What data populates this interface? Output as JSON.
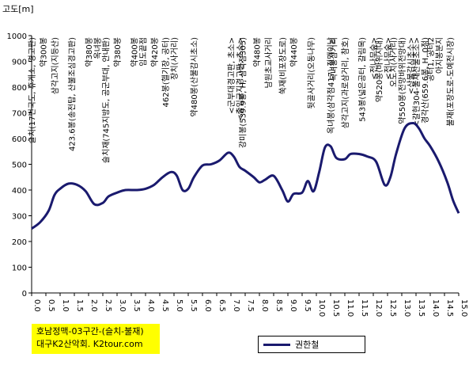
{
  "chart_data": {
    "type": "line",
    "ylabel": "고도[m]",
    "xlim": [
      0.0,
      15.0
    ],
    "ylim": [
      0,
      1000
    ],
    "grid": false,
    "legend_position": "bottom-right",
    "x_ticks": [
      "0.0",
      "0.5",
      "1.0",
      "1.5",
      "2.0",
      "2.5",
      "3.0",
      "3.5",
      "4.0",
      "4.5",
      "5.0",
      "5.5",
      "6.0",
      "6.5",
      "7.0",
      "7.5",
      "8.0",
      "8.5",
      "9.0",
      "9.5",
      "10.0",
      "10.5",
      "11.0",
      "11.5",
      "12.0",
      "12.5",
      "13.0",
      "13.5",
      "14.0",
      "14.5",
      "15.0"
    ],
    "y_ticks": [
      "0",
      "100",
      "200",
      "300",
      "400",
      "500",
      "600",
      "700",
      "800",
      "900",
      "1000"
    ],
    "series": [
      {
        "name": "권한철",
        "color": "#1a1a6e",
        "x": [
          0.0,
          0.3,
          0.6,
          0.8,
          1.0,
          1.3,
          1.6,
          1.9,
          2.2,
          2.5,
          2.7,
          3.0,
          3.3,
          3.7,
          4.0,
          4.3,
          4.6,
          4.9,
          5.1,
          5.3,
          5.5,
          5.7,
          6.0,
          6.3,
          6.6,
          6.9,
          7.1,
          7.3,
          7.5,
          7.8,
          8.0,
          8.2,
          8.5,
          8.8,
          9.0,
          9.2,
          9.5,
          9.7,
          9.9,
          10.1,
          10.3,
          10.5,
          10.7,
          11.0,
          11.2,
          11.5,
          11.8,
          12.1,
          12.4,
          12.6,
          12.8,
          13.1,
          13.4,
          13.6,
          13.8,
          14.0,
          14.3,
          14.6,
          14.8,
          15.0
        ],
        "y": [
          250,
          275,
          320,
          380,
          405,
          425,
          420,
          395,
          345,
          350,
          375,
          390,
          400,
          400,
          405,
          420,
          450,
          470,
          455,
          400,
          405,
          450,
          495,
          500,
          515,
          545,
          530,
          490,
          475,
          450,
          430,
          440,
          455,
          400,
          355,
          385,
          390,
          435,
          395,
          470,
          565,
          570,
          525,
          520,
          540,
          540,
          530,
          510,
          420,
          450,
          540,
          640,
          660,
          640,
          600,
          570,
          510,
          430,
          360,
          310
        ]
      }
    ],
    "annotations": [
      {
        "x": 0.0,
        "text": "슬치(17번국도, 휴게소, 경고판)"
      },
      {
        "x": 0.4,
        "text": "약300봉"
      },
      {
        "x": 0.8,
        "text": "삼각고지(지등산)"
      },
      {
        "x": 1.4,
        "text": "423.6봉(송전탑, 산불조심경고판)"
      },
      {
        "x": 2.0,
        "text": "약380봉"
      },
      {
        "x": 2.3,
        "text": "옥녀봉"
      },
      {
        "x": 2.6,
        "text": "슬치재(745지방도, 공군부대, 안내판)"
      },
      {
        "x": 3.0,
        "text": "약380봉"
      },
      {
        "x": 3.6,
        "text": "약400봉"
      },
      {
        "x": 3.9,
        "text": "임도끝점"
      },
      {
        "x": 4.3,
        "text": "약420봉"
      },
      {
        "x": 4.7,
        "text": "462봉(헬기장, 공터)"
      },
      {
        "x": 5.0,
        "text": "장치(사거리)"
      },
      {
        "x": 5.7,
        "text": "약480봉(산불감시초소)"
      },
      {
        "x": 7.0,
        "text": "<군부대경고판, 초소>"
      },
      {
        "x": 7.3,
        "text": "<출입금지경고판, 초소>"
      },
      {
        "x": 7.4,
        "text": "강미봉(539.9봉, H, 삼각점305)"
      },
      {
        "x": 7.9,
        "text": "약480봉"
      },
      {
        "x": 8.3,
        "text": "남원초교사거리"
      },
      {
        "x": 8.8,
        "text": "쑥재(비포장도로)"
      },
      {
        "x": 9.2,
        "text": "약440봉"
      },
      {
        "x": 9.8,
        "text": "뒷골사거리(오동나무)"
      },
      {
        "x": 10.5,
        "text": "옥녀봉(삼각점417) 정맥이남"
      },
      {
        "x": 10.6,
        "text": "옥녀봉삼거리"
      },
      {
        "x": 11.0,
        "text": "삼각고지(과로삼거리, 참호)"
      },
      {
        "x": 11.6,
        "text": "543봉(넓은공터, 갈림목)"
      },
      {
        "x": 12.0,
        "text": "<전나무숲>"
      },
      {
        "x": 12.2,
        "text": "약520봉(바위지대)"
      },
      {
        "x": 12.5,
        "text": "<전나무숲>"
      },
      {
        "x": 12.7,
        "text": "오도치(사거리)"
      },
      {
        "x": 13.0,
        "text": "약550봉(전망바위전망대)"
      },
      {
        "x": 13.3,
        "text": "<산불감시초소>"
      },
      {
        "x": 13.5,
        "text": "<갈현304-울재산불초소>"
      },
      {
        "x": 13.8,
        "text": "경각산(659.6봉, H, 0점)"
      },
      {
        "x": 14.0,
        "text": "공터1, 공터2"
      },
      {
        "x": 14.3,
        "text": "아지봉분지"
      },
      {
        "x": 14.7,
        "text": "불재(포장도로-도예전시장)"
      }
    ]
  },
  "credit": {
    "line1": "호남정맥-03구간-(슬치-불재)",
    "line2": "대구K2산악회. K2tour.com"
  }
}
